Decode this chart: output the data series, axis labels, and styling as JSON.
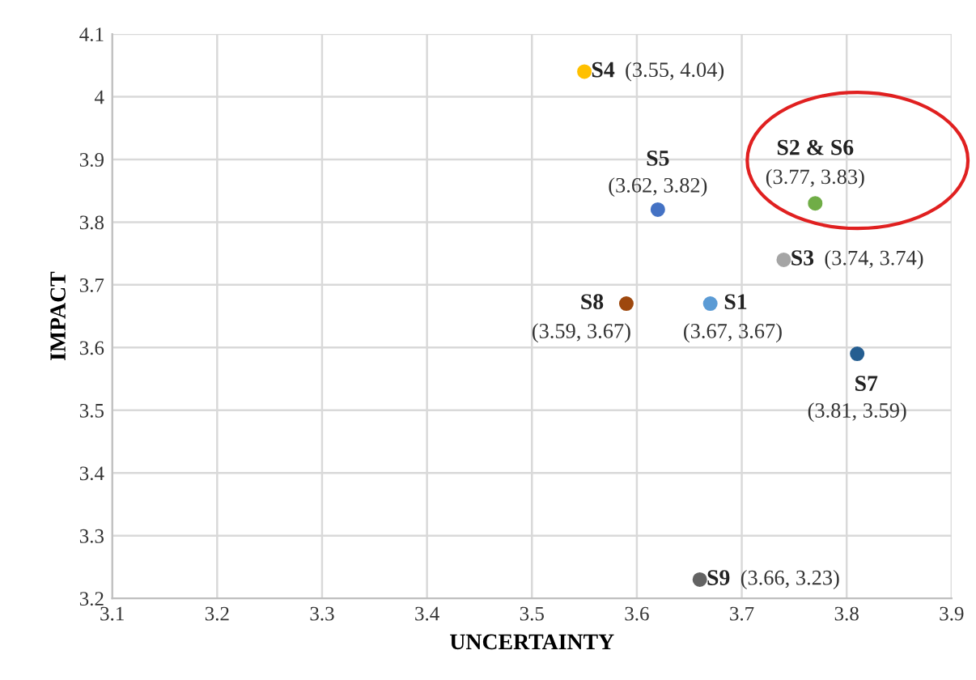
{
  "chart_data": {
    "type": "scatter",
    "xlabel": "UNCERTAINTY",
    "ylabel": "IMPACT",
    "xlim": [
      3.1,
      3.9
    ],
    "ylim": [
      3.2,
      4.1
    ],
    "xticks": [
      3.1,
      3.2,
      3.3,
      3.4,
      3.5,
      3.6,
      3.7,
      3.8,
      3.9
    ],
    "yticks": [
      3.2,
      3.3,
      3.4,
      3.5,
      3.6,
      3.7,
      3.8,
      3.9,
      4,
      4.1
    ],
    "grid": true,
    "marker": "circle",
    "legend": false,
    "series": [
      {
        "name": "S4",
        "color": "#ffc000",
        "x": [
          3.55
        ],
        "values": [
          4.04
        ],
        "value_labels": [
          "(3.55, 4.04)"
        ]
      },
      {
        "name": "S5",
        "color": "#4472c4",
        "x": [
          3.62
        ],
        "values": [
          3.82
        ],
        "value_labels": [
          "(3.62, 3.82)"
        ]
      },
      {
        "name": "S2 & S6",
        "color": "#70ad47",
        "x": [
          3.77
        ],
        "values": [
          3.83
        ],
        "value_labels": [
          "(3.77, 3.83)"
        ]
      },
      {
        "name": "S3",
        "color": "#a5a5a5",
        "x": [
          3.74
        ],
        "values": [
          3.74
        ],
        "value_labels": [
          "(3.74, 3.74)"
        ]
      },
      {
        "name": "S8",
        "color": "#9e480e",
        "x": [
          3.59
        ],
        "values": [
          3.67
        ],
        "value_labels": [
          "(3.59, 3.67)"
        ]
      },
      {
        "name": "S1",
        "color": "#5b9bd5",
        "x": [
          3.67
        ],
        "values": [
          3.67
        ],
        "value_labels": [
          "(3.67, 3.67)"
        ]
      },
      {
        "name": "S7",
        "color": "#255e91",
        "x": [
          3.81
        ],
        "values": [
          3.59
        ],
        "value_labels": [
          "(3.81, 3.59)"
        ]
      },
      {
        "name": "S9",
        "color": "#636363",
        "x": [
          3.66
        ],
        "values": [
          3.23
        ],
        "value_labels": [
          "(3.66, 3.23)"
        ]
      }
    ]
  }
}
